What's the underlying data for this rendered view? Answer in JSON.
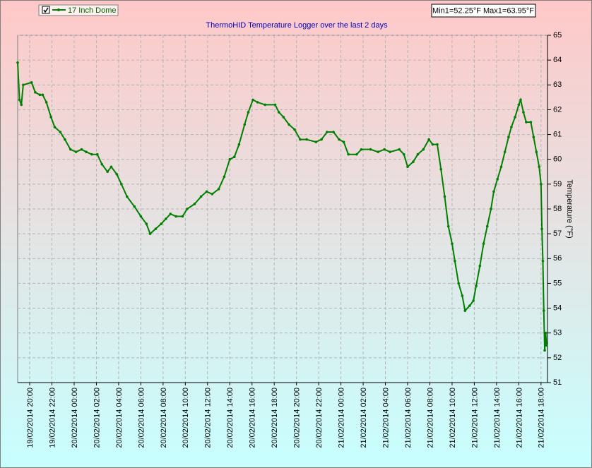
{
  "chart_data": {
    "type": "line",
    "title": "ThermoHID Temperature Logger over the last 2 days",
    "annotation": "Min1=52.25°F Max1=63.95°F",
    "y_label": "Temperature (°F)",
    "x": [
      "2014-02-19 18:55",
      "2014-02-19 19:05",
      "2014-02-19 19:15",
      "2014-02-19 19:25",
      "2014-02-19 20:10",
      "2014-02-19 20:30",
      "2014-02-19 20:55",
      "2014-02-19 21:10",
      "2014-02-19 21:30",
      "2014-02-19 21:55",
      "2014-02-19 22:15",
      "2014-02-19 22:45",
      "2014-02-19 23:10",
      "2014-02-19 23:40",
      "2014-02-20 00:10",
      "2014-02-20 00:40",
      "2014-02-20 01:05",
      "2014-02-20 01:35",
      "2014-02-20 02:05",
      "2014-02-20 02:30",
      "2014-02-20 03:00",
      "2014-02-20 03:20",
      "2014-02-20 03:50",
      "2014-02-20 04:15",
      "2014-02-20 04:45",
      "2014-02-20 05:25",
      "2014-02-20 06:00",
      "2014-02-20 06:30",
      "2014-02-20 06:50",
      "2014-02-20 07:20",
      "2014-02-20 07:50",
      "2014-02-20 08:15",
      "2014-02-20 08:40",
      "2014-02-20 09:10",
      "2014-02-20 09:45",
      "2014-02-20 10:10",
      "2014-02-20 10:50",
      "2014-02-20 11:25",
      "2014-02-20 11:55",
      "2014-02-20 12:25",
      "2014-02-20 13:00",
      "2014-02-20 13:30",
      "2014-02-20 14:00",
      "2014-02-20 14:25",
      "2014-02-20 14:50",
      "2014-02-20 15:20",
      "2014-02-20 15:40",
      "2014-02-20 16:05",
      "2014-02-20 16:30",
      "2014-02-20 17:10",
      "2014-02-20 18:05",
      "2014-02-20 18:25",
      "2014-02-20 18:50",
      "2014-02-20 19:20",
      "2014-02-20 19:50",
      "2014-02-20 20:20",
      "2014-02-20 20:55",
      "2014-02-20 21:45",
      "2014-02-20 22:15",
      "2014-02-20 22:45",
      "2014-02-20 23:20",
      "2014-02-20 23:50",
      "2014-02-21 00:15",
      "2014-02-21 00:40",
      "2014-02-21 01:25",
      "2014-02-21 01:50",
      "2014-02-21 02:40",
      "2014-02-21 03:20",
      "2014-02-21 03:55",
      "2014-02-21 04:25",
      "2014-02-21 05:15",
      "2014-02-21 05:40",
      "2014-02-21 06:00",
      "2014-02-21 06:30",
      "2014-02-21 06:55",
      "2014-02-21 07:25",
      "2014-02-21 07:55",
      "2014-02-21 08:15",
      "2014-02-21 08:40",
      "2014-02-21 09:00",
      "2014-02-21 09:20",
      "2014-02-21 09:40",
      "2014-02-21 10:00",
      "2014-02-21 10:15",
      "2014-02-21 10:35",
      "2014-02-21 10:55",
      "2014-02-21 11:10",
      "2014-02-21 11:35",
      "2014-02-21 11:55",
      "2014-02-21 12:10",
      "2014-02-21 12:30",
      "2014-02-21 12:50",
      "2014-02-21 13:10",
      "2014-02-21 13:30",
      "2014-02-21 13:45",
      "2014-02-21 14:05",
      "2014-02-21 14:25",
      "2014-02-21 14:45",
      "2014-02-21 15:05",
      "2014-02-21 15:20",
      "2014-02-21 15:40",
      "2014-02-21 16:00",
      "2014-02-21 16:10",
      "2014-02-21 16:25",
      "2014-02-21 16:40",
      "2014-02-21 17:05",
      "2014-02-21 17:20",
      "2014-02-21 17:35",
      "2014-02-21 17:50",
      "2014-02-21 18:00",
      "2014-02-21 18:05",
      "2014-02-21 18:10",
      "2014-02-21 18:15",
      "2014-02-21 18:20",
      "2014-02-21 18:25",
      "2014-02-21 18:30"
    ],
    "series": [
      {
        "name": "17 Inch Dome",
        "color": "#008000",
        "values": [
          63.9,
          62.4,
          62.2,
          63.0,
          63.1,
          62.7,
          62.6,
          62.6,
          62.3,
          61.7,
          61.3,
          61.1,
          60.8,
          60.4,
          60.3,
          60.4,
          60.3,
          60.2,
          60.2,
          59.8,
          59.5,
          59.7,
          59.4,
          59.0,
          58.5,
          58.1,
          57.7,
          57.4,
          57.0,
          57.2,
          57.4,
          57.6,
          57.8,
          57.7,
          57.7,
          58.0,
          58.2,
          58.5,
          58.7,
          58.6,
          58.8,
          59.3,
          60.0,
          60.1,
          60.6,
          61.4,
          61.9,
          62.4,
          62.3,
          62.2,
          62.2,
          61.9,
          61.7,
          61.4,
          61.2,
          60.8,
          60.8,
          60.7,
          60.8,
          61.1,
          61.1,
          60.8,
          60.7,
          60.2,
          60.2,
          60.4,
          60.4,
          60.3,
          60.4,
          60.3,
          60.4,
          60.2,
          59.7,
          59.9,
          60.2,
          60.4,
          60.8,
          60.6,
          60.6,
          59.6,
          58.5,
          57.3,
          56.6,
          55.9,
          55.0,
          54.5,
          53.9,
          54.1,
          54.3,
          54.9,
          55.7,
          56.6,
          57.3,
          58.0,
          58.7,
          59.2,
          59.7,
          60.3,
          60.9,
          61.3,
          61.7,
          62.2,
          62.4,
          61.9,
          61.5,
          61.5,
          60.9,
          60.3,
          59.7,
          59.0,
          57.2,
          55.9,
          53.9,
          52.3,
          53.0,
          52.5
        ]
      }
    ],
    "xlim": [
      "2014-02-19 18:55",
      "2014-02-21 18:35"
    ],
    "xticks": [
      {
        "value": "2014-02-19 20:00",
        "label": "19/02/2014 20:00"
      },
      {
        "value": "2014-02-19 22:00",
        "label": "19/02/2014 22:00"
      },
      {
        "value": "2014-02-20 00:00",
        "label": "20/02/2014 00:00"
      },
      {
        "value": "2014-02-20 02:00",
        "label": "20/02/2014 02:00"
      },
      {
        "value": "2014-02-20 04:00",
        "label": "20/02/2014 04:00"
      },
      {
        "value": "2014-02-20 06:00",
        "label": "20/02/2014 06:00"
      },
      {
        "value": "2014-02-20 08:00",
        "label": "20/02/2014 08:00"
      },
      {
        "value": "2014-02-20 10:00",
        "label": "20/02/2014 10:00"
      },
      {
        "value": "2014-02-20 12:00",
        "label": "20/02/2014 12:00"
      },
      {
        "value": "2014-02-20 14:00",
        "label": "20/02/2014 14:00"
      },
      {
        "value": "2014-02-20 16:00",
        "label": "20/02/2014 16:00"
      },
      {
        "value": "2014-02-20 18:00",
        "label": "20/02/2014 18:00"
      },
      {
        "value": "2014-02-20 20:00",
        "label": "20/02/2014 20:00"
      },
      {
        "value": "2014-02-20 22:00",
        "label": "20/02/2014 22:00"
      },
      {
        "value": "2014-02-21 00:00",
        "label": "21/02/2014 00:00"
      },
      {
        "value": "2014-02-21 02:00",
        "label": "21/02/2014 02:00"
      },
      {
        "value": "2014-02-21 04:00",
        "label": "21/02/2014 04:00"
      },
      {
        "value": "2014-02-21 06:00",
        "label": "21/02/2014 06:00"
      },
      {
        "value": "2014-02-21 08:00",
        "label": "21/02/2014 08:00"
      },
      {
        "value": "2014-02-21 10:00",
        "label": "21/02/2014 10:00"
      },
      {
        "value": "2014-02-21 12:00",
        "label": "21/02/2014 12:00"
      },
      {
        "value": "2014-02-21 14:00",
        "label": "21/02/2014 14:00"
      },
      {
        "value": "2014-02-21 16:00",
        "label": "21/02/2014 16:00"
      },
      {
        "value": "2014-02-21 18:00",
        "label": "21/02/2014 18:00"
      }
    ],
    "ylim": [
      51,
      65
    ],
    "yticks": [
      51,
      52,
      53,
      54,
      55,
      56,
      57,
      58,
      59,
      60,
      61,
      62,
      63,
      64,
      65
    ],
    "grid": true,
    "legend": "top-left"
  }
}
